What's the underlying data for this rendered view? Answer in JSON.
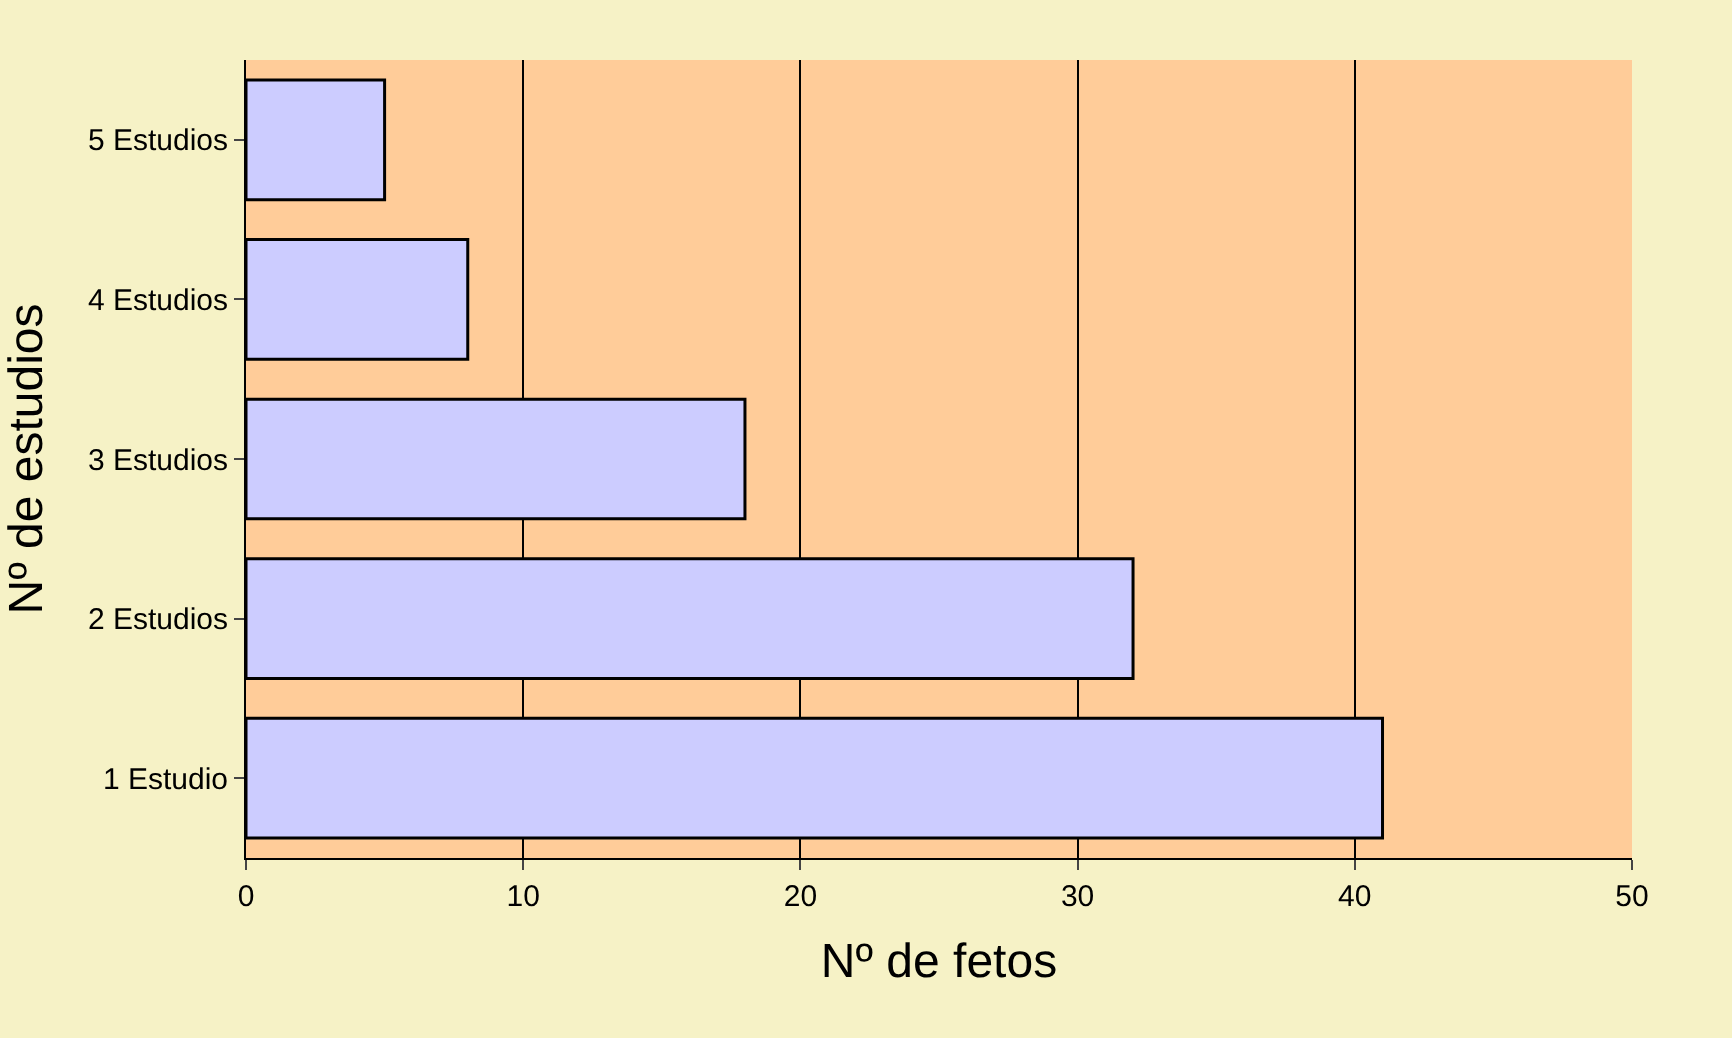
{
  "chart_data": {
    "type": "bar",
    "orientation": "horizontal",
    "xlabel": "Nº de fetos",
    "ylabel": "Nº de estudios",
    "categories": [
      "5 Estudios",
      "4 Estudios",
      "3 Estudios",
      "2 Estudios",
      "1 Estudio"
    ],
    "values": [
      5,
      8,
      18,
      32,
      41
    ],
    "color": "#ccccff",
    "xlim": [
      0,
      50
    ],
    "xticks": [
      0,
      10,
      20,
      30,
      40,
      50
    ],
    "grid": "x",
    "legend": false
  }
}
